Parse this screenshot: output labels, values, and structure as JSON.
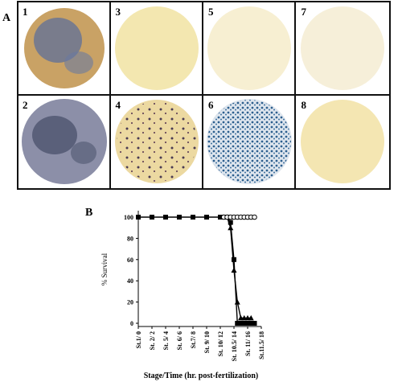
{
  "figure": {
    "panel_a_label": "A",
    "panel_b_label": "B",
    "image_labels": [
      "1",
      "3",
      "5",
      "7",
      "2",
      "4",
      "6",
      "8"
    ]
  },
  "chart_data": {
    "type": "line",
    "ylabel": "% Survival",
    "xlabel": "Stage/Time (hr. post-fertilization)",
    "xlim": [
      0,
      18
    ],
    "ylim": [
      0,
      100
    ],
    "xticks": [
      {
        "value": 0,
        "label": "St.1/ 0"
      },
      {
        "value": 2,
        "label": "St. 2/ 2"
      },
      {
        "value": 4,
        "label": "St. 5/ 4"
      },
      {
        "value": 6,
        "label": "St. 6/ 6"
      },
      {
        "value": 8,
        "label": "St.7/ 8"
      },
      {
        "value": 10,
        "label": "St. 9/ 10"
      },
      {
        "value": 12,
        "label": "St. 10/ 12"
      },
      {
        "value": 14,
        "label": "St. 10.5/ 14"
      },
      {
        "value": 16,
        "label": "St. 11/ 16"
      },
      {
        "value": 18,
        "label": "St.11.5/ 18"
      }
    ],
    "yticks": [
      0,
      20,
      40,
      60,
      80,
      100
    ],
    "series": [
      {
        "marker": "square",
        "color": "#000000",
        "x": [
          0,
          2,
          4,
          6,
          8,
          10,
          12,
          12.5,
          13,
          13.5,
          14,
          14.5,
          15,
          15.5,
          16,
          16.5,
          17
        ],
        "values": [
          100,
          100,
          100,
          100,
          100,
          100,
          100,
          100,
          100,
          95,
          60,
          0,
          0,
          0,
          0,
          0,
          0
        ]
      },
      {
        "marker": "triangle",
        "color": "#000000",
        "x": [
          12.5,
          13,
          13.5,
          14,
          14.5,
          15,
          15.5,
          16,
          16.5
        ],
        "values": [
          100,
          100,
          90,
          50,
          20,
          5,
          5,
          5,
          5
        ]
      },
      {
        "marker": "circle-open",
        "color": "#000000",
        "x": [
          12.5,
          13,
          13.5,
          14,
          14.5,
          15,
          15.5,
          16,
          16.5,
          17
        ],
        "values": [
          100,
          100,
          100,
          100,
          100,
          100,
          100,
          100,
          100,
          100
        ]
      }
    ]
  }
}
